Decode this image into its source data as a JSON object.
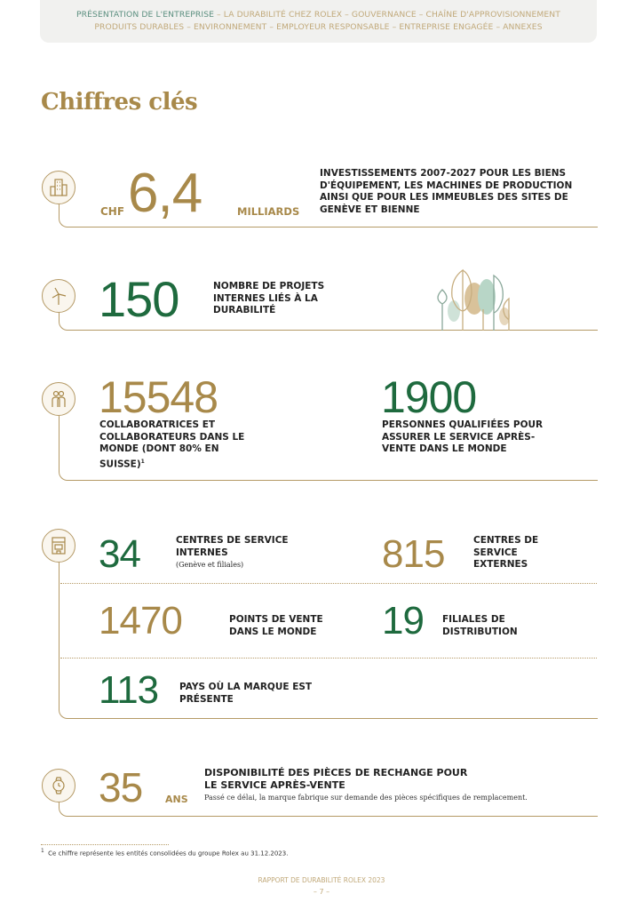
{
  "nav": {
    "current": "PRÉSENTATION DE L'ENTREPRISE",
    "line1_rest": " – LA DURABILITÉ CHEZ ROLEX – GOUVERNANCE – CHAÎNE D'APPROVISIONNEMENT",
    "line2": "PRODUITS DURABLES – ENVIRONNEMENT – EMPLOYEUR RESPONSABLE – ENTREPRISE ENGAGÉE – ANNEXES"
  },
  "title": "Chiffres clés",
  "colors": {
    "gold": "#a8894a",
    "green": "#1e6a3e"
  },
  "invest": {
    "icon": "buildings-icon",
    "prefix": "CHF",
    "value": "6,4",
    "unit": "MILLIARDS",
    "text": "INVESTISSEMENTS 2007-2027 POUR LES BIENS D'ÉQUIPEMENT, LES MACHINES DE PRODUCTION AINSI QUE POUR LES IMMEUBLES DES SITES DE GENÈVE ET BIENNE"
  },
  "projects": {
    "icon": "wind-turbine-icon",
    "value": "150",
    "text": "NOMBRE DE PROJETS INTERNES LIÉS À LA DURABILITÉ"
  },
  "staff": {
    "icon": "people-icon",
    "value": "15548",
    "text": "COLLABORATRICES ET COLLABORATEURS DANS LE MONDE (DONT 80% EN SUISSE)",
    "footnote_mark": "1",
    "service_value": "1900",
    "service_text": "PERSONNES QUALIFIÉES POUR ASSURER LE SERVICE APRÈS-VENTE DANS LE MONDE"
  },
  "network": {
    "icon": "storefront-icon",
    "internal": {
      "value": "34",
      "text": "CENTRES DE SERVICE INTERNES",
      "note": "(Genève et filiales)"
    },
    "external": {
      "value": "815",
      "text": "CENTRES DE SERVICE EXTERNES"
    },
    "sales": {
      "value": "1470",
      "text": "POINTS DE VENTE DANS LE MONDE"
    },
    "subsidiaries": {
      "value": "19",
      "text": "FILIALES DE DISTRIBUTION"
    },
    "countries": {
      "value": "113",
      "text": "PAYS OÙ LA MARQUE EST PRÉSENTE"
    }
  },
  "parts": {
    "icon": "watch-icon",
    "value": "35",
    "unit": "ANS",
    "text": "DISPONIBILITÉ DES PIÈCES DE RECHANGE POUR LE SERVICE APRÈS-VENTE",
    "note": "Passé ce délai, la marque fabrique sur demande des pièces spécifiques de remplacement."
  },
  "footnote": {
    "mark": "1",
    "text": "Ce chiffre représente les entités consolidées du groupe Rolex au 31.12.2023."
  },
  "footer": {
    "report": "RAPPORT DE DURABILITÉ ROLEX 2023",
    "page": "– 7 –"
  }
}
